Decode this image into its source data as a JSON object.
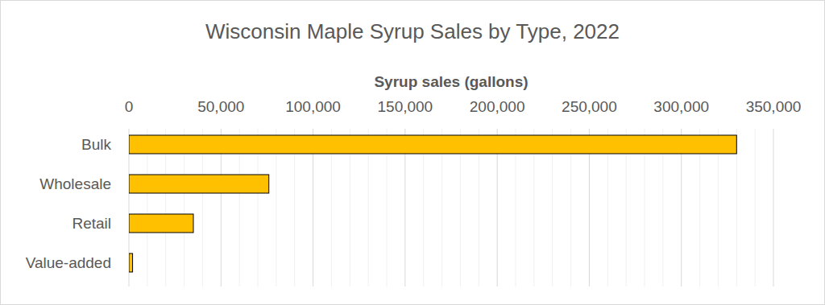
{
  "chart_data": {
    "type": "bar",
    "orientation": "horizontal",
    "title": "Wisconsin Maple Syrup Sales by Type, 2022",
    "xlabel": "Syrup sales (gallons)",
    "categories": [
      "Bulk",
      "Wholesale",
      "Retail",
      "Value-added"
    ],
    "values": [
      330000,
      76000,
      35000,
      2000
    ],
    "color": "#ffc000",
    "xlim": [
      0,
      350000
    ],
    "xticks": [
      0,
      {
        "value": 50000,
        "label": "50,000"
      },
      {
        "value": 100000,
        "label": "100,000"
      },
      {
        "value": 150000,
        "label": "150,000"
      },
      {
        "value": 200000,
        "label": "200,000"
      },
      {
        "value": 250000,
        "label": "250,000"
      },
      {
        "value": 300000,
        "label": "300,000"
      },
      {
        "value": 350000,
        "label": "350,000"
      }
    ],
    "grid": true
  }
}
